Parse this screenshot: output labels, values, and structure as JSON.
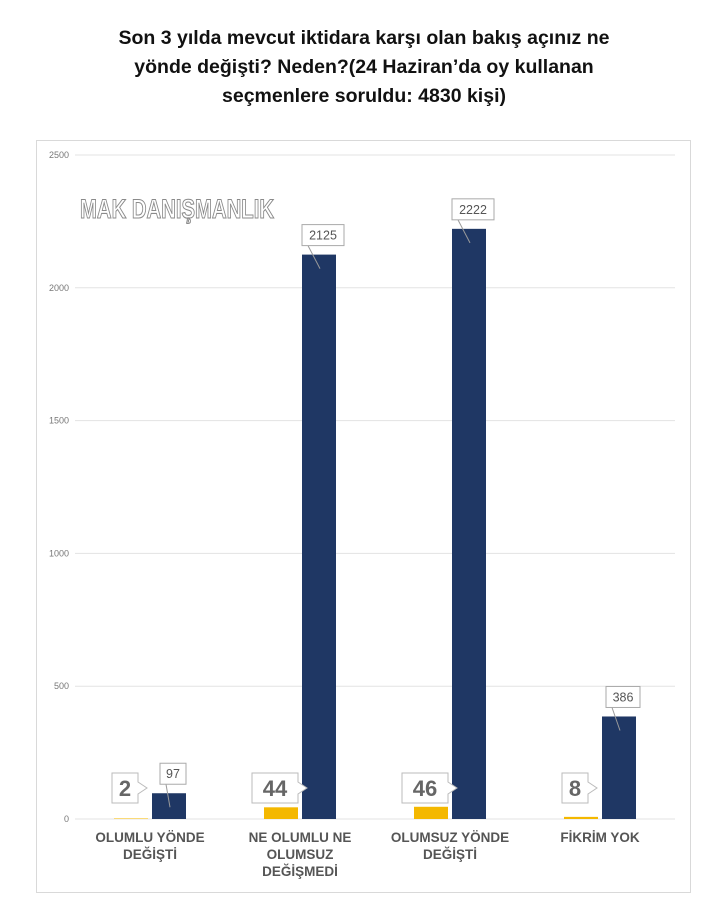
{
  "title_lines": [
    "Son 3 yılda mevcut iktidara karşı olan bakış açınız ne",
    "yönde değişti?  Neden?(24 Haziran’da oy kullanan",
    "seçmenlere soruldu: 4830 kişi)"
  ],
  "watermark": "MAK DANIŞMANLIK",
  "colors": {
    "pct": "#f4b800",
    "count": "#1f3764",
    "grid": "#e3e3e3",
    "axis_text": "#777777",
    "cat_text": "#555555"
  },
  "chart_data": {
    "type": "bar",
    "title": "Son 3 yılda mevcut iktidara karşı olan bakış açınız ne yönde değişti?  Neden?(24 Haziran’da oy kullanan seçmenlere soruldu: 4830 kişi)",
    "categories": [
      [
        "OLUMLU YÖNDE",
        "DEĞİŞTİ"
      ],
      [
        "NE OLUMLU NE",
        "OLUMSUZ",
        "DEĞİŞMEDİ"
      ],
      [
        "OLUMSUZ YÖNDE",
        "DEĞİŞTİ"
      ],
      [
        "FİKRİM YOK"
      ]
    ],
    "series": [
      {
        "values": [
          2,
          44,
          46,
          8
        ],
        "color": "#f4b800"
      },
      {
        "values": [
          97,
          2125,
          2222,
          386
        ],
        "color": "#1f3764"
      }
    ],
    "data_labels": [
      [
        "2",
        "44",
        "46",
        "8"
      ],
      [
        "97",
        "2125",
        "2222",
        "386"
      ]
    ],
    "yticks": [
      "0",
      "500",
      "1000",
      "1500",
      "2000",
      "2500"
    ],
    "ylim": [
      0,
      2500
    ],
    "grid": true,
    "legend": "none"
  }
}
